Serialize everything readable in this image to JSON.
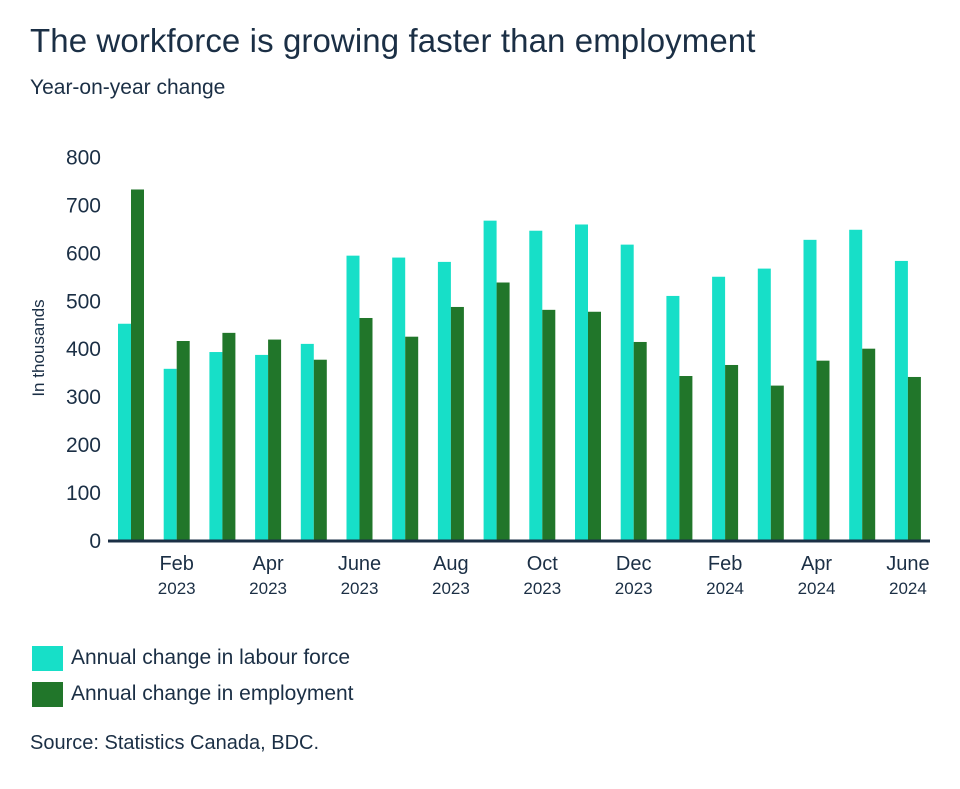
{
  "header": {
    "title": "The workforce is growing faster than employment",
    "subtitle": "Year-on-year change"
  },
  "chart_data": {
    "type": "bar",
    "title": "The workforce is growing faster than employment",
    "subtitle": "Year-on-year change",
    "xlabel": "",
    "ylabel": "In thousands",
    "ylim": [
      0,
      800
    ],
    "yticks": [
      0,
      100,
      200,
      300,
      400,
      500,
      600,
      700,
      800
    ],
    "ytick_labels": [
      "0",
      "100",
      "200",
      "300",
      "400",
      "500",
      "600",
      "700",
      "800"
    ],
    "grid": false,
    "categories": [
      "Jan 2023",
      "Feb 2023",
      "Mar 2023",
      "Apr 2023",
      "May 2023",
      "June 2023",
      "July 2023",
      "Aug 2023",
      "Sep 2023",
      "Oct 2023",
      "Nov 2023",
      "Dec 2023",
      "Jan 2024",
      "Feb 2024",
      "Mar 2024",
      "Apr 2024",
      "May 2024",
      "June 2024"
    ],
    "xtick_labels": [
      {
        "index": 1,
        "month": "Feb",
        "year": "2023"
      },
      {
        "index": 3,
        "month": "Apr",
        "year": "2023"
      },
      {
        "index": 5,
        "month": "June",
        "year": "2023"
      },
      {
        "index": 7,
        "month": "Aug",
        "year": "2023"
      },
      {
        "index": 9,
        "month": "Oct",
        "year": "2023"
      },
      {
        "index": 11,
        "month": "Dec",
        "year": "2023"
      },
      {
        "index": 13,
        "month": "Feb",
        "year": "2024"
      },
      {
        "index": 15,
        "month": "Apr",
        "year": "2024"
      },
      {
        "index": 17,
        "month": "June",
        "year": "2024"
      }
    ],
    "series": [
      {
        "name": "Annual change in labour force",
        "color": "#17dfc8",
        "values": [
          451,
          357,
          392,
          386,
          409,
          593,
          589,
          580,
          666,
          645,
          658,
          616,
          509,
          549,
          566,
          626,
          647,
          582
        ]
      },
      {
        "name": "Annual change in employment",
        "color": "#21762a",
        "values": [
          731,
          415,
          432,
          418,
          376,
          463,
          424,
          486,
          537,
          480,
          476,
          413,
          342,
          365,
          322,
          374,
          399,
          340
        ]
      }
    ],
    "legend_position": "bottom-left"
  },
  "legend": {
    "items": [
      {
        "label": "Annual change in labour force",
        "color": "#17dfc8"
      },
      {
        "label": "Annual change in employment",
        "color": "#21762a"
      }
    ]
  },
  "footer": {
    "source": "Source: Statistics Canada, BDC."
  }
}
